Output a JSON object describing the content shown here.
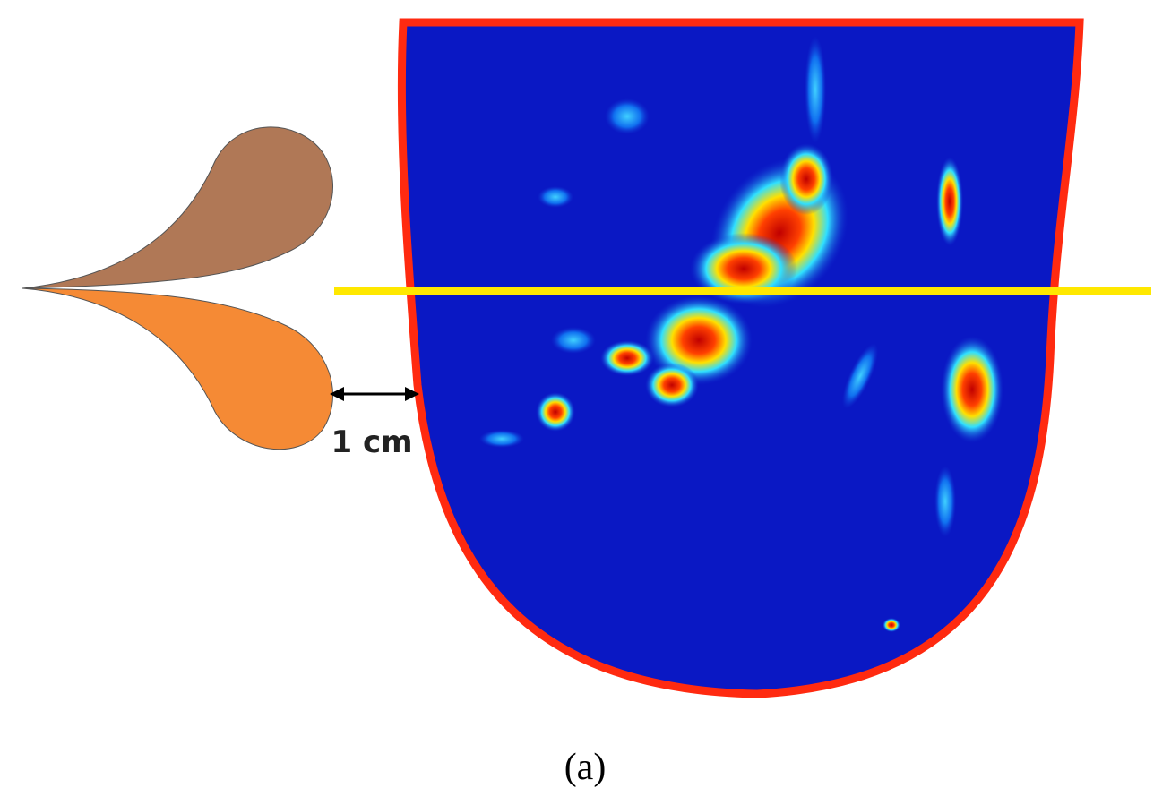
{
  "figure": {
    "scale_label": "1 cm",
    "panel_label": "(a)"
  }
}
